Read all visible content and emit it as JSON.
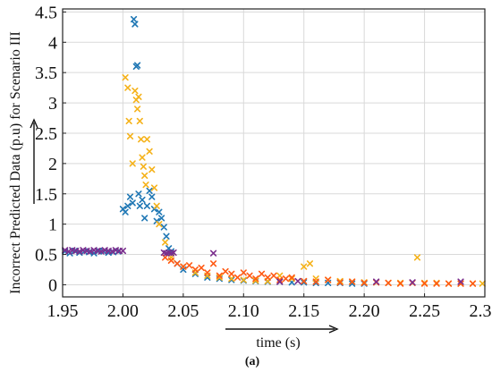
{
  "chart_data": {
    "type": "scatter",
    "title": "",
    "xlabel": "time (s)",
    "ylabel": "Incorrect Predicted Data (p.u) for Scenario III",
    "caption": "(a)",
    "xlim": [
      1.95,
      2.3
    ],
    "ylim": [
      -0.2,
      4.55
    ],
    "xticks": [
      1.95,
      2.0,
      2.05,
      2.1,
      2.15,
      2.2,
      2.25,
      2.3
    ],
    "xtick_labels": [
      "1.95",
      "2.00",
      "2.05",
      "2.10",
      "2.15",
      "2.20",
      "2.25",
      "2.30"
    ],
    "yticks": [
      0,
      0.5,
      1,
      1.5,
      2,
      2.5,
      3,
      3.5,
      4,
      4.5
    ],
    "ytick_labels": [
      "0",
      "0.5",
      "1",
      "1.5",
      "2",
      "2.5",
      "3",
      "3.5",
      "4",
      "4.5"
    ],
    "grid": true,
    "marker": "x",
    "series": [
      {
        "color": "#1f77b4",
        "x": [
          1.952,
          1.956,
          1.96,
          1.964,
          1.968,
          1.972,
          1.976,
          1.98,
          1.984,
          1.988,
          1.992,
          1.996,
          2.0,
          2.002,
          2.004,
          2.006,
          2.008,
          2.009,
          2.01,
          2.011,
          2.012,
          2.013,
          2.014,
          2.016,
          2.018,
          2.02,
          2.022,
          2.024,
          2.026,
          2.028,
          2.03,
          2.032,
          2.034,
          2.036,
          2.038,
          2.04,
          2.045,
          2.05,
          2.06,
          2.07,
          2.08,
          2.09,
          2.1,
          2.11,
          2.12,
          2.13,
          2.14,
          2.15,
          2.16,
          2.17,
          2.18,
          2.19,
          2.2
        ],
        "y": [
          0.55,
          0.52,
          0.56,
          0.53,
          0.55,
          0.54,
          0.52,
          0.56,
          0.55,
          0.53,
          0.54,
          0.55,
          1.25,
          1.2,
          1.3,
          1.45,
          1.35,
          4.38,
          4.3,
          3.6,
          3.62,
          1.5,
          1.3,
          1.4,
          1.1,
          1.3,
          1.55,
          1.45,
          1.25,
          1.05,
          1.2,
          1.1,
          0.95,
          0.8,
          0.6,
          0.55,
          0.35,
          0.25,
          0.18,
          0.12,
          0.1,
          0.08,
          0.07,
          0.06,
          0.05,
          0.05,
          0.04,
          0.04,
          0.03,
          0.03,
          0.03,
          0.02,
          0.02
        ]
      },
      {
        "color": "#f5b21a",
        "x": [
          2.002,
          2.004,
          2.005,
          2.006,
          2.008,
          2.01,
          2.011,
          2.012,
          2.013,
          2.014,
          2.015,
          2.016,
          2.017,
          2.018,
          2.019,
          2.02,
          2.022,
          2.024,
          2.026,
          2.028,
          2.03,
          2.035,
          2.04,
          2.05,
          2.06,
          2.07,
          2.08,
          2.09,
          2.1,
          2.11,
          2.12,
          2.13,
          2.14,
          2.15,
          2.155,
          2.16,
          2.17,
          2.18,
          2.19,
          2.2,
          2.21,
          2.22,
          2.23,
          2.244,
          2.25,
          2.26,
          2.27,
          2.28,
          2.29,
          2.298
        ],
        "y": [
          3.42,
          3.25,
          2.7,
          2.45,
          2.0,
          3.2,
          3.05,
          2.9,
          3.1,
          2.7,
          2.4,
          2.1,
          1.95,
          1.8,
          1.65,
          2.4,
          2.2,
          1.9,
          1.6,
          1.3,
          1.0,
          0.7,
          0.45,
          0.3,
          0.2,
          0.15,
          0.12,
          0.1,
          0.08,
          0.07,
          0.06,
          0.15,
          0.1,
          0.3,
          0.35,
          0.1,
          0.08,
          0.06,
          0.05,
          0.04,
          0.04,
          0.03,
          0.03,
          0.45,
          0.03,
          0.03,
          0.02,
          0.02,
          0.02,
          0.02
        ]
      },
      {
        "color": "#ff5a14",
        "x": [
          2.035,
          2.04,
          2.045,
          2.05,
          2.055,
          2.06,
          2.065,
          2.07,
          2.075,
          2.08,
          2.085,
          2.09,
          2.095,
          2.1,
          2.105,
          2.11,
          2.115,
          2.12,
          2.125,
          2.13,
          2.135,
          2.14,
          2.15,
          2.16,
          2.17,
          2.18,
          2.19,
          2.2,
          2.21,
          2.22,
          2.23,
          2.24,
          2.25,
          2.26,
          2.27,
          2.28,
          2.29
        ],
        "y": [
          0.45,
          0.4,
          0.35,
          0.3,
          0.32,
          0.25,
          0.28,
          0.2,
          0.35,
          0.15,
          0.22,
          0.18,
          0.12,
          0.2,
          0.15,
          0.1,
          0.18,
          0.12,
          0.15,
          0.08,
          0.1,
          0.12,
          0.06,
          0.05,
          0.08,
          0.04,
          0.05,
          0.03,
          0.04,
          0.03,
          0.02,
          0.03,
          0.02,
          0.02,
          0.02,
          0.02,
          0.02
        ]
      },
      {
        "color": "#7b2f8e",
        "x": [
          1.952,
          1.955,
          1.958,
          1.961,
          1.964,
          1.967,
          1.97,
          1.973,
          1.976,
          1.979,
          1.982,
          1.985,
          1.988,
          1.991,
          1.994,
          1.997,
          2.0,
          2.034,
          2.036,
          2.038,
          2.04,
          2.042,
          2.075,
          2.13,
          2.145,
          2.21,
          2.24,
          2.28
        ],
        "y": [
          0.57,
          0.55,
          0.57,
          0.56,
          0.55,
          0.57,
          0.56,
          0.55,
          0.57,
          0.56,
          0.55,
          0.57,
          0.56,
          0.55,
          0.57,
          0.56,
          0.56,
          0.53,
          0.52,
          0.53,
          0.52,
          0.53,
          0.52,
          0.05,
          0.06,
          0.05,
          0.04,
          0.05
        ]
      }
    ]
  }
}
